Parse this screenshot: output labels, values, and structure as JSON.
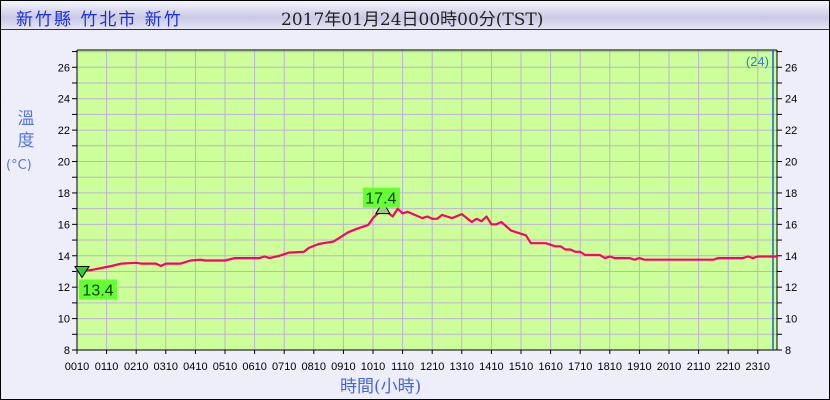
{
  "header": {
    "location": "新竹縣 竹北市 新竹",
    "datetime": "2017年01月24日00時00分(TST)"
  },
  "colors": {
    "plot_bg": "#ccff99",
    "line": "#ff0066",
    "grid": "#c0b0d8",
    "marker_box": "#66ff33",
    "now_line": "#1a5fd0"
  },
  "chart_data": {
    "type": "line",
    "ylabel": "溫度",
    "yunit": "(°C)",
    "xlabel": "時間(小時)",
    "ylim": [
      8,
      27.1
    ],
    "grid": true,
    "yticks": [
      "8",
      "10",
      "12",
      "14",
      "16",
      "18",
      "20",
      "22",
      "24",
      "26"
    ],
    "xticks": [
      "0010",
      "0110",
      "0210",
      "0310",
      "0410",
      "0510",
      "0610",
      "0710",
      "0810",
      "0910",
      "1010",
      "1110",
      "1210",
      "1310",
      "1410",
      "1510",
      "1610",
      "1710",
      "1810",
      "1910",
      "2010",
      "2110",
      "2210",
      "2310"
    ],
    "corner_note": "(24)",
    "max_label": "17.4",
    "min_label": "13.4",
    "series": [
      {
        "x": [
          "00:10",
          "00:40",
          "01:20",
          "01:40",
          "02:10",
          "02:20",
          "02:50",
          "03:00",
          "03:10",
          "03:40",
          "04:00",
          "04:20",
          "04:30",
          "05:10",
          "05:30",
          "06:20",
          "06:30",
          "06:40",
          "07:00",
          "07:20",
          "07:50",
          "08:00",
          "08:20",
          "08:50",
          "09:20",
          "09:40",
          "10:00",
          "10:10",
          "10:30",
          "10:50",
          "11:00",
          "11:10",
          "11:20",
          "11:50",
          "12:00",
          "12:10",
          "12:20",
          "12:30",
          "12:40",
          "12:50",
          "13:10",
          "13:30",
          "13:40",
          "13:50",
          "14:00",
          "14:10",
          "14:20",
          "14:30",
          "14:50",
          "15:00",
          "15:20",
          "15:30",
          "16:00",
          "16:20",
          "16:30",
          "16:40",
          "16:50",
          "17:00",
          "17:10",
          "17:20",
          "17:50",
          "18:00",
          "18:10",
          "18:20",
          "18:50",
          "19:00",
          "19:10",
          "19:20",
          "21:40",
          "21:50",
          "22:40",
          "22:50",
          "23:00",
          "23:10",
          "23:50"
        ],
        "values": [
          13.0,
          13.1,
          13.35,
          13.5,
          13.55,
          13.5,
          13.5,
          13.35,
          13.5,
          13.5,
          13.7,
          13.75,
          13.7,
          13.7,
          13.85,
          13.85,
          13.95,
          13.85,
          14.0,
          14.2,
          14.25,
          14.5,
          14.75,
          14.9,
          15.5,
          15.75,
          15.95,
          16.4,
          17.0,
          16.5,
          17.0,
          16.7,
          16.8,
          16.4,
          16.5,
          16.35,
          16.35,
          16.6,
          16.5,
          16.4,
          16.65,
          16.15,
          16.35,
          16.2,
          16.5,
          16.0,
          16.0,
          16.15,
          15.6,
          15.5,
          15.3,
          14.8,
          14.8,
          14.6,
          14.6,
          14.4,
          14.4,
          14.25,
          14.25,
          14.05,
          14.05,
          13.85,
          13.95,
          13.85,
          13.85,
          13.75,
          13.85,
          13.75,
          13.75,
          13.85,
          13.85,
          13.95,
          13.85,
          13.95,
          13.95
        ]
      }
    ]
  }
}
